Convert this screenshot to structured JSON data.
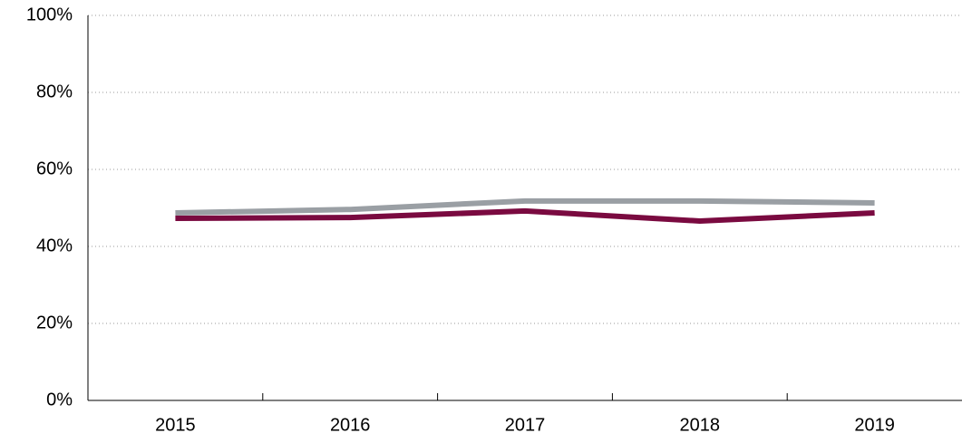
{
  "chart_data": {
    "type": "line",
    "categories": [
      "2015",
      "2016",
      "2017",
      "2018",
      "2019"
    ],
    "series": [
      {
        "color": "#9a9fa4",
        "values": [
          48.7,
          49.6,
          51.8,
          51.8,
          51.3
        ]
      },
      {
        "color": "#7a0a40",
        "values": [
          47.3,
          47.5,
          49.2,
          46.6,
          48.7
        ]
      }
    ],
    "ylim": [
      0,
      100
    ],
    "yticks": [
      {
        "value": 0,
        "label": "0%"
      },
      {
        "value": 20,
        "label": "20%"
      },
      {
        "value": 40,
        "label": "40%"
      },
      {
        "value": 60,
        "label": "60%"
      },
      {
        "value": 80,
        "label": "80%"
      },
      {
        "value": 100,
        "label": "100%"
      }
    ],
    "grid": true
  }
}
